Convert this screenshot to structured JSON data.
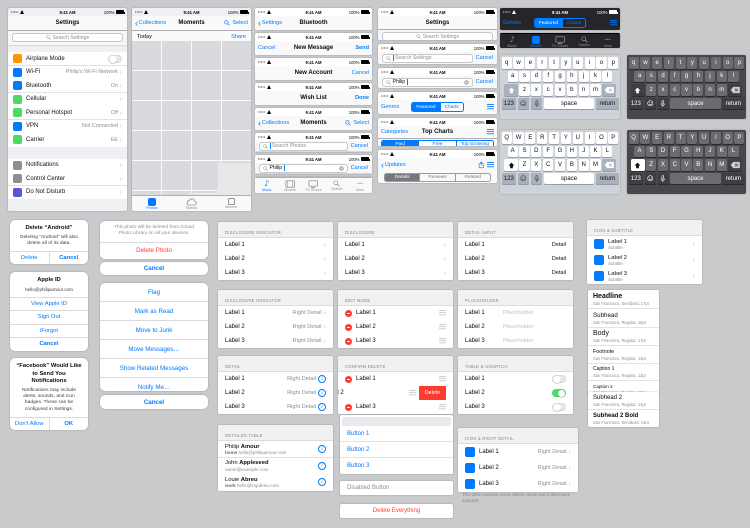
{
  "status": {
    "carrier_dots": "•••••",
    "time": "9:41 AM",
    "battery": "100%"
  },
  "colors": {
    "blue": "#007aff",
    "green": "#4cd964",
    "red": "#ff3b30",
    "orange": "#ff9500",
    "gray": "#8e8e93",
    "purple": "#5856d6"
  },
  "settings_phone": {
    "title": "Settings",
    "search_placeholder": "Search Settings",
    "groups": [
      [
        {
          "icon": "airplane-mode",
          "color": "#ff9500",
          "label": "Airplane Mode",
          "control": "toggle",
          "on": false
        },
        {
          "icon": "wifi",
          "color": "#007aff",
          "label": "Wi-Fi",
          "detail": "Philip's Wi-Fi Network",
          "chevron": true
        },
        {
          "icon": "bluetooth",
          "color": "#007aff",
          "label": "Bluetooth",
          "detail": "On",
          "chevron": true
        },
        {
          "icon": "cellular",
          "color": "#4cd964",
          "label": "Cellular",
          "detail": "",
          "chevron": true
        },
        {
          "icon": "personal-hotspot",
          "color": "#4cd964",
          "label": "Personal Hotspot",
          "detail": "Off",
          "chevron": true
        },
        {
          "icon": "vpn",
          "color": "#007aff",
          "label": "VPN",
          "detail": "Not Connected",
          "chevron": true
        },
        {
          "icon": "carrier",
          "color": "#4cd964",
          "label": "Carrier",
          "detail": "EE",
          "chevron": true
        }
      ],
      [
        {
          "icon": "notifications",
          "color": "#8e8e93",
          "label": "Notifications",
          "chevron": true
        },
        {
          "icon": "control-center",
          "color": "#8e8e93",
          "label": "Control Center",
          "chevron": true
        },
        {
          "icon": "do-not-disturb",
          "color": "#5856d6",
          "label": "Do Not Disturb",
          "chevron": true
        }
      ]
    ]
  },
  "moments": {
    "back": "Collections",
    "title": "Moments",
    "select": "Select",
    "today": "Today",
    "share": "Share",
    "tabs": [
      {
        "label": "Photos",
        "icon": "photos",
        "active": true
      },
      {
        "label": "Shared",
        "icon": "cloud",
        "active": false
      },
      {
        "label": "Albums",
        "icon": "albums",
        "active": false
      }
    ]
  },
  "nav_examples": [
    {
      "left": "Settings",
      "left_chevron": true,
      "title": "Bluetooth"
    },
    {
      "left": "Cancel",
      "title": "New Message",
      "right": "Send",
      "right_bold": true
    },
    {
      "title": "New Account",
      "right": "Cancel"
    },
    {
      "title": "Wish List",
      "right": "Done",
      "right_bold": true
    },
    {
      "left": "Collections",
      "left_chevron": true,
      "title": "Moments",
      "right": "Select",
      "right_icon": "search"
    }
  ],
  "search_examples": [
    {
      "placeholder": "Search Photos",
      "cancel": "Cancel",
      "focused": true
    },
    {
      "value": "Philip",
      "cancel": "Cancel",
      "clear": true,
      "focused": true
    }
  ],
  "tabbar": {
    "items": [
      {
        "label": "Music",
        "icon": "music"
      },
      {
        "label": "Movies",
        "icon": "film"
      },
      {
        "label": "TV Shows",
        "icon": "tv"
      },
      {
        "label": "Search",
        "icon": "search"
      },
      {
        "label": "More",
        "icon": "more"
      }
    ],
    "light_active": 0,
    "dark_active": 1
  },
  "settings_search_pages": {
    "title": "Settings",
    "placeholder": "Search Settings",
    "cancel": "Cancel",
    "typed_value": "Philip"
  },
  "store_bars": {
    "genres": {
      "left": "Genres",
      "segments": [
        "Featured",
        "Charts"
      ],
      "selected": 0
    },
    "top_charts": {
      "left": "Categories",
      "title": "Top Charts",
      "segments": [
        "Paid",
        "Free",
        "Top Grossing"
      ],
      "selected": 0
    },
    "updates": {
      "back": "Updates",
      "segments": [
        "Details",
        "Reviews",
        "Related"
      ],
      "selected": 0
    }
  },
  "keyboard": {
    "row1": [
      "q",
      "w",
      "e",
      "r",
      "t",
      "y",
      "u",
      "i",
      "o",
      "p"
    ],
    "row2": [
      "a",
      "s",
      "d",
      "f",
      "g",
      "h",
      "j",
      "k",
      "l"
    ],
    "row3": [
      "z",
      "x",
      "c",
      "v",
      "b",
      "n",
      "m"
    ],
    "keys": {
      "numbers": "123",
      "space": "space",
      "return": "return"
    }
  },
  "alerts": [
    {
      "title": "Delete “Android”",
      "body": "Deleting “Android” will also delete all of its data.",
      "layout": "horizontal",
      "actions": [
        {
          "label": "Delete"
        },
        {
          "label": "Cancel",
          "bold": true
        }
      ]
    },
    {
      "title": "Apple ID",
      "body": "hello@philipamour.com",
      "layout": "vertical",
      "actions": [
        {
          "label": "View Apple ID"
        },
        {
          "label": "Sign Out"
        },
        {
          "label": "iForgot"
        },
        {
          "label": "Cancel",
          "bold": true
        }
      ]
    },
    {
      "title": "“Facebook” Would Like to Send You Notifications",
      "body": "Notifications may include alerts, sounds, and icon badges. These can be configured in Settings.",
      "layout": "horizontal",
      "actions": [
        {
          "label": "Don’t Allow"
        },
        {
          "label": "OK",
          "bold": true
        }
      ]
    }
  ],
  "action_sheets": {
    "photo": {
      "header": "This photo will be deleted from iCloud Photo Library on all your devices.",
      "actions": [
        {
          "label": "Delete Photo",
          "destructive": true
        }
      ],
      "cancel": "Cancel"
    },
    "mail": {
      "actions": [
        {
          "label": "Flag"
        },
        {
          "label": "Mark as Read"
        },
        {
          "label": "Move to Junk"
        },
        {
          "label": "Move Messages…"
        },
        {
          "label": "Show Related Messages"
        },
        {
          "label": "Notify Me…"
        }
      ],
      "cancel": "Cancel"
    }
  },
  "row_labels": [
    "Label 1",
    "Label 2",
    "Label 3"
  ],
  "tables": {
    "disclosure_indicator": {
      "caption": "DISCLOSURE INDICATOR"
    },
    "disclosure": {
      "caption": "DISCLOSURE"
    },
    "detail_input": {
      "caption": "DETAIL INPUT",
      "detail": "Detail"
    },
    "icon_subtitle": {
      "caption": "ICON & SUBTITLE",
      "subtitle": "Subtitle"
    },
    "disclosure_right": {
      "caption": "DISCLOSURE INDICATOR",
      "right": "Right Detail"
    },
    "edit_mode": {
      "caption": "EDIT MODE"
    },
    "placeholder": {
      "caption": "PLACEHOLDER",
      "placeholder": "Placeholder"
    },
    "detail": {
      "caption": "DETAIL",
      "right": "Right Detail"
    },
    "confirm_delete": {
      "caption": "CONFIRM DELETE",
      "delete_label": "Delete"
    },
    "table_switch": {
      "caption": "TABLE & UISWITCH",
      "states": [
        false,
        true,
        false
      ]
    },
    "icon_right_detail": {
      "caption": "ICON & RIGHT DETAIL",
      "right": "Right Detail",
      "footer": "This table contains icons, labels, detail and a disclosure indicator."
    }
  },
  "typography": {
    "main": [
      {
        "name": "Headline",
        "meta": "San Francisco, Semibold, 17pt"
      },
      {
        "name": "Subhead",
        "meta": "San Francisco, Regular, 15pt"
      },
      {
        "name": "Body",
        "meta": "San Francisco, Regular, 17pt"
      },
      {
        "name": "Footnote",
        "meta": "San Francisco, Regular, 13pt"
      },
      {
        "name": "Caption 1",
        "meta": "San Francisco, Regular, 12pt"
      },
      {
        "name": "Caption 2",
        "meta": "San Francisco, Regular, 11pt"
      }
    ],
    "extra": [
      {
        "name": "Subhead 2",
        "meta": "San Francisco, Regular, 14pt"
      },
      {
        "name": "Subhead 2 Bold",
        "meta": "San Francisco, Semibold, 14pt"
      }
    ]
  },
  "detailed_table": {
    "caption": "DETAILED TABLE",
    "rows": [
      {
        "first": "Philip",
        "last": "Amour",
        "prefix": "home",
        "value": "hello@philipamour.com"
      },
      {
        "first": "John",
        "last": "Appleseed",
        "prefix": "",
        "value": "name@example.com"
      },
      {
        "first": "Louie",
        "last": "Abreu",
        "prefix": "work",
        "value": "hello@lmjabreu.com"
      }
    ]
  },
  "buttons": {
    "group": [
      "Button 1",
      "Button 2",
      "Button 3"
    ],
    "disabled": "Disabled Button",
    "destructive": "Delete Everything"
  }
}
